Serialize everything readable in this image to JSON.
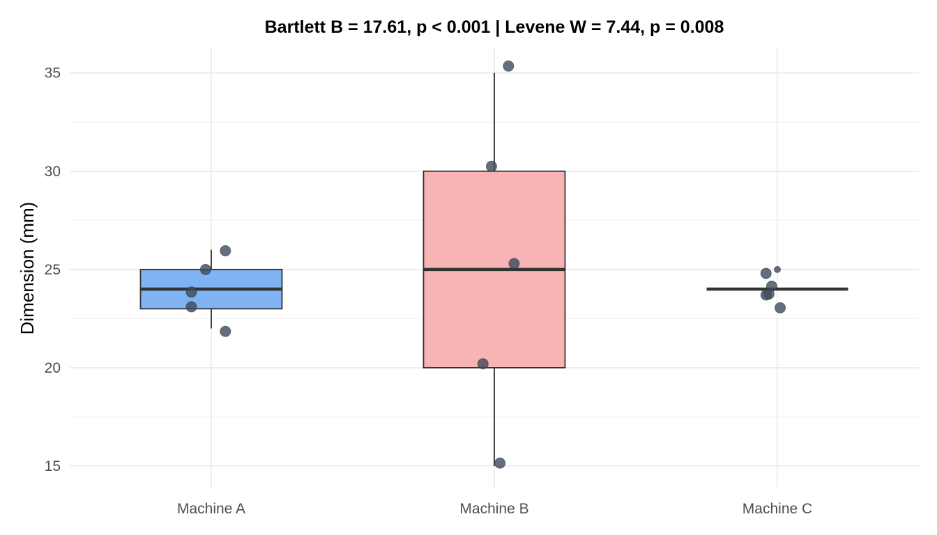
{
  "chart_data": {
    "type": "boxplot",
    "title": "Bartlett B = 17.61, p < 0.001    |    Levene W = 7.44, p = 0.008",
    "xlabel": "",
    "ylabel": "Dimension (mm)",
    "ylim": [
      13.9,
      36.3
    ],
    "yticks": [
      15,
      20,
      25,
      30,
      35
    ],
    "ytick_labels": [
      "15",
      "20",
      "25",
      "30",
      "35"
    ],
    "grid": true,
    "legend": "none",
    "categories": [
      "Machine A",
      "Machine B",
      "Machine C"
    ],
    "boxes": [
      {
        "category": "Machine A",
        "whisker_low": 22,
        "q1": 23,
        "median": 24,
        "q3": 25,
        "whisker_high": 26,
        "color": "#80b3f2"
      },
      {
        "category": "Machine B",
        "whisker_low": 15,
        "q1": 20,
        "median": 25,
        "q3": 30,
        "whisker_high": 35,
        "color": "#f8b4b4"
      },
      {
        "category": "Machine C",
        "whisker_low": 24,
        "q1": 24,
        "median": 24,
        "q3": 24,
        "whisker_high": 24,
        "color": "#f8b4b4"
      }
    ],
    "points": [
      {
        "category": "Machine A",
        "jitter": -0.07,
        "y": 23.85
      },
      {
        "category": "Machine A",
        "jitter": -0.07,
        "y": 23.1
      },
      {
        "category": "Machine A",
        "jitter": -0.02,
        "y": 25.0
      },
      {
        "category": "Machine A",
        "jitter": 0.05,
        "y": 25.95
      },
      {
        "category": "Machine A",
        "jitter": 0.05,
        "y": 21.85
      },
      {
        "category": "Machine B",
        "jitter": 0.05,
        "y": 35.35
      },
      {
        "category": "Machine B",
        "jitter": -0.01,
        "y": 30.25
      },
      {
        "category": "Machine B",
        "jitter": 0.07,
        "y": 25.3
      },
      {
        "category": "Machine B",
        "jitter": -0.04,
        "y": 20.2
      },
      {
        "category": "Machine B",
        "jitter": 0.02,
        "y": 15.15
      },
      {
        "category": "Machine C",
        "jitter": -0.04,
        "y": 24.8
      },
      {
        "category": "Machine C",
        "jitter": -0.02,
        "y": 24.15
      },
      {
        "category": "Machine C",
        "jitter": -0.03,
        "y": 23.75
      },
      {
        "category": "Machine C",
        "jitter": -0.04,
        "y": 23.7
      },
      {
        "category": "Machine C",
        "jitter": 0.01,
        "y": 23.05
      },
      {
        "category": "Machine C",
        "jitter": 0.0,
        "y": 25.0,
        "small": true
      }
    ],
    "point_color": "#3d4a5c"
  }
}
